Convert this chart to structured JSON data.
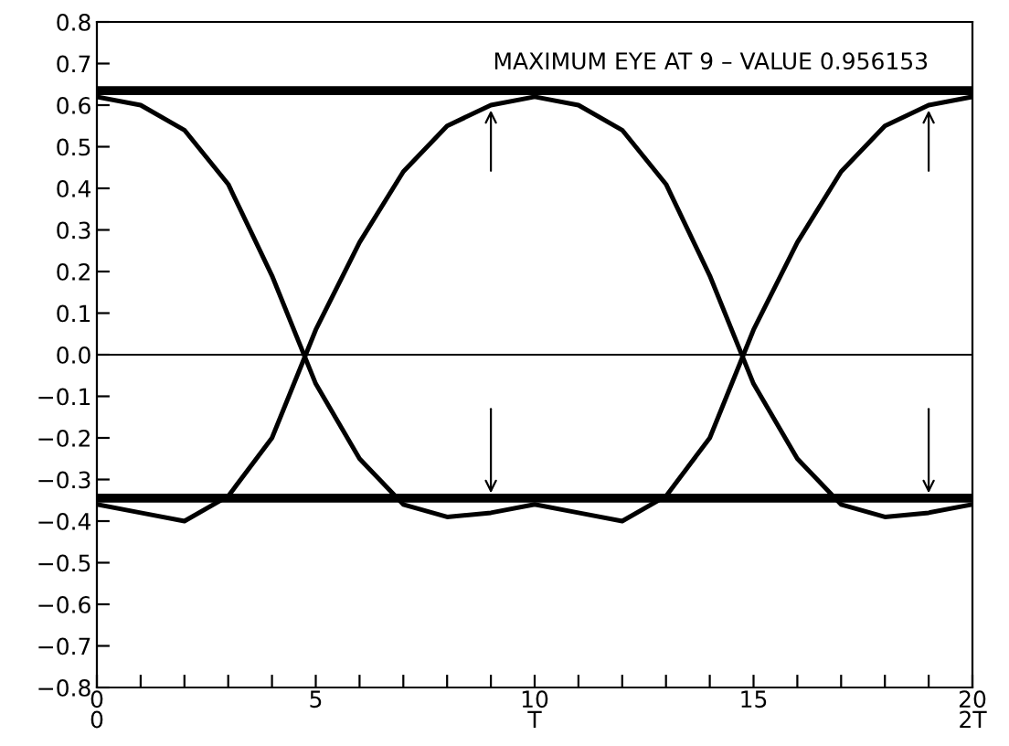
{
  "chart_data": {
    "type": "line",
    "x": [
      0,
      1,
      2,
      3,
      4,
      5,
      6,
      7,
      8,
      9,
      10,
      11,
      12,
      13,
      14,
      15,
      16,
      17,
      18,
      19,
      20
    ],
    "series": [
      {
        "color": "#000000",
        "values": [
          0.62,
          0.6,
          0.54,
          0.41,
          0.19,
          -0.07,
          -0.25,
          -0.36,
          -0.39,
          -0.38,
          -0.36,
          -0.38,
          -0.4,
          -0.34,
          -0.2,
          0.06,
          0.27,
          0.44,
          0.55,
          0.6,
          0.62
        ]
      },
      {
        "color": "#000000",
        "values": [
          -0.36,
          -0.38,
          -0.4,
          -0.34,
          -0.2,
          0.06,
          0.27,
          0.44,
          0.55,
          0.6,
          0.62,
          0.6,
          0.54,
          0.41,
          0.19,
          -0.07,
          -0.25,
          -0.36,
          -0.39,
          -0.38,
          -0.36
        ]
      },
      {
        "color": "#000000",
        "values": [
          0.635,
          0.635,
          0.635,
          0.635,
          0.635,
          0.635,
          0.635,
          0.635,
          0.635,
          0.635,
          0.635,
          0.635,
          0.635,
          0.635,
          0.635,
          0.635,
          0.635,
          0.635,
          0.635,
          0.635,
          0.635
        ]
      },
      {
        "color": "#000000",
        "values": [
          -0.345,
          -0.345,
          -0.345,
          -0.345,
          -0.345,
          -0.345,
          -0.345,
          -0.345,
          -0.345,
          -0.345,
          -0.345,
          -0.345,
          -0.345,
          -0.345,
          -0.345,
          -0.345,
          -0.345,
          -0.345,
          -0.345,
          -0.345,
          -0.345
        ]
      }
    ],
    "annotations": [
      {
        "text": "MAXIMUM EYE AT 9 – VALUE 0.956153",
        "x": 9,
        "y": 0.6
      }
    ],
    "ref_lines": [
      {
        "axis": "y",
        "value": 0,
        "color": "#000000"
      }
    ],
    "xlim": [
      0,
      20
    ],
    "ylim": [
      -0.8,
      0.8
    ],
    "xticks": [
      {
        "value": 0,
        "label": "0\n0"
      },
      {
        "value": 1,
        "label": null
      },
      {
        "value": 2,
        "label": null
      },
      {
        "value": 3,
        "label": null
      },
      {
        "value": 4,
        "label": null
      },
      {
        "value": 5,
        "label": "5"
      },
      {
        "value": 6,
        "label": null
      },
      {
        "value": 7,
        "label": null
      },
      {
        "value": 8,
        "label": null
      },
      {
        "value": 9,
        "label": null
      },
      {
        "value": 10,
        "label": "10\nT"
      },
      {
        "value": 11,
        "label": null
      },
      {
        "value": 12,
        "label": null
      },
      {
        "value": 13,
        "label": null
      },
      {
        "value": 14,
        "label": null
      },
      {
        "value": 15,
        "label": "15"
      },
      {
        "value": 16,
        "label": null
      },
      {
        "value": 17,
        "label": null
      },
      {
        "value": 18,
        "label": null
      },
      {
        "value": 19,
        "label": null
      },
      {
        "value": 20,
        "label": "20\n2T"
      }
    ],
    "yticks": [
      {
        "value": -0.8,
        "label": "−0.8"
      },
      {
        "value": -0.7,
        "label": "−0.7"
      },
      {
        "value": -0.6,
        "label": "−0.6"
      },
      {
        "value": -0.5,
        "label": "−0.5"
      },
      {
        "value": -0.4,
        "label": "−0.4"
      },
      {
        "value": -0.3,
        "label": "−0.3"
      },
      {
        "value": -0.2,
        "label": "−0.2"
      },
      {
        "value": -0.1,
        "label": "−0.1"
      },
      {
        "value": 0,
        "label": "0.0"
      },
      0.1,
      0.2,
      0.3,
      0.4,
      0.5,
      0.6,
      0.7,
      0.8
    ],
    "grid": false,
    "legend": false,
    "marker": "none",
    "line_style": "solid"
  }
}
